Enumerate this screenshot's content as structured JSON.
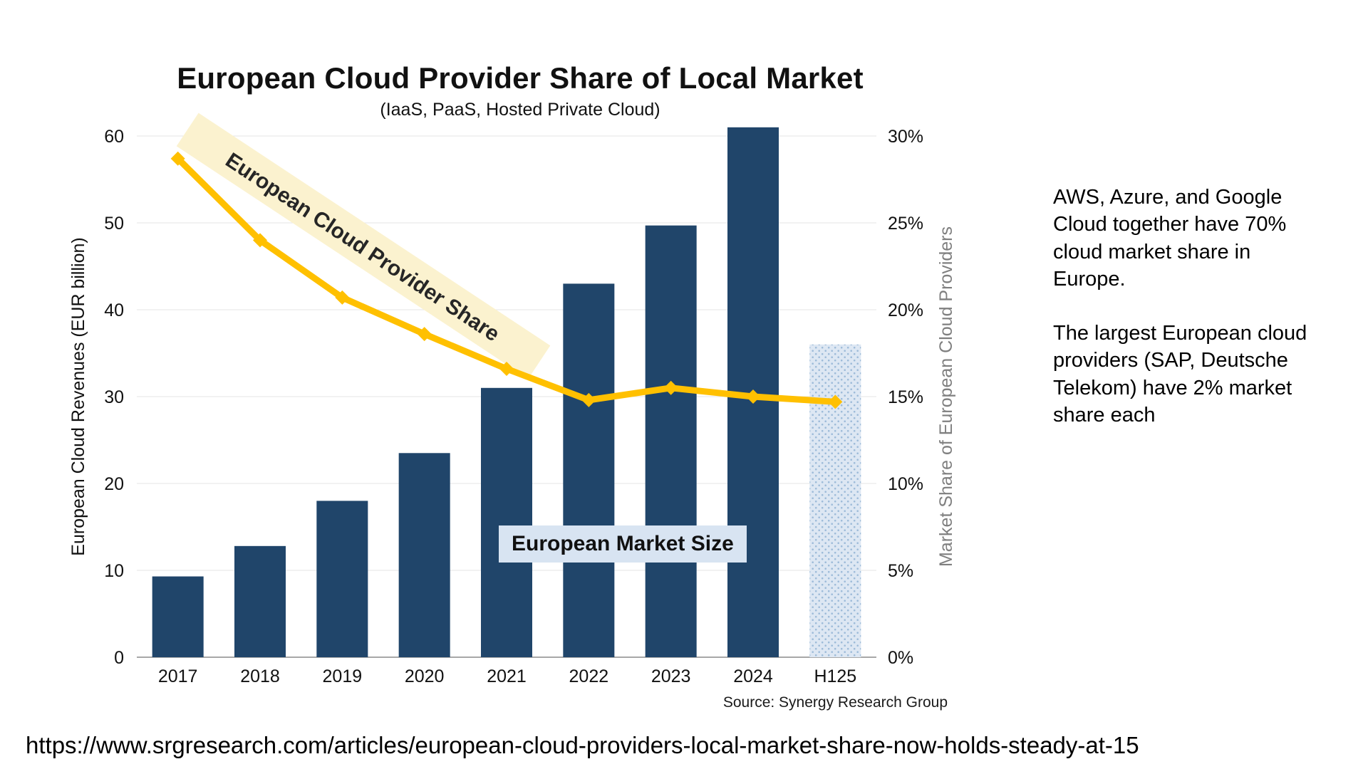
{
  "page": {
    "url_caption": "https://www.srgresearch.com/articles/european-cloud-providers-local-market-share-now-holds-steady-at-15"
  },
  "annotation": {
    "para1": "AWS, Azure, and Google Cloud together have 70% cloud market share in Europe.",
    "para2": "The largest European cloud providers (SAP, Deutsche Telekom) have 2% market share each"
  },
  "chart_data": {
    "type": "bar",
    "combo": "bar+line",
    "title": "European Cloud Provider Share of Local Market",
    "subtitle": "(IaaS, PaaS, Hosted Private Cloud)",
    "categories": [
      "2017",
      "2018",
      "2019",
      "2020",
      "2021",
      "2022",
      "2023",
      "2024",
      "H125"
    ],
    "series": [
      {
        "name": "European Market Size",
        "type": "bar",
        "axis": "left",
        "values": [
          9.3,
          12.8,
          18,
          23.5,
          31,
          43,
          49.7,
          61,
          36
        ]
      },
      {
        "name": "European Cloud Provider Share",
        "type": "line",
        "axis": "right",
        "values": [
          28.7,
          24,
          20.7,
          18.6,
          16.6,
          14.8,
          15.5,
          15,
          14.7
        ]
      }
    ],
    "forecast_index": 8,
    "ylabel_left": "European Cloud Revenues (EUR billion)",
    "ylabel_right": "Market Share of European Cloud Providers",
    "yleft": {
      "min": 0,
      "max": 60,
      "step": 10
    },
    "yright": {
      "min": 0,
      "max": 30,
      "step": 5,
      "suffix": "%"
    },
    "yticks_left": [
      "0",
      "10",
      "20",
      "30",
      "40",
      "50",
      "60"
    ],
    "yticks_right": [
      "0%",
      "5%",
      "10%",
      "15%",
      "20%",
      "25%",
      "30%"
    ],
    "grid": true,
    "legend_position": "none",
    "labels": {
      "line_label": "European Cloud Provider Share",
      "bar_label": "European Market Size"
    },
    "source": "Source: Synergy Research Group",
    "colors": {
      "bar": "#20456A",
      "bar_forecast_fill": "#DDE7F3",
      "bar_forecast_dot": "#9DBBD9",
      "line": "#FFC000",
      "line_label_bg": "#FBF2CF",
      "bar_label_bg": "#D8E4F2",
      "right_axis_text": "#7F7F7F",
      "grid": "#E6E6E6",
      "axis_line": "#8C8C8C"
    }
  }
}
